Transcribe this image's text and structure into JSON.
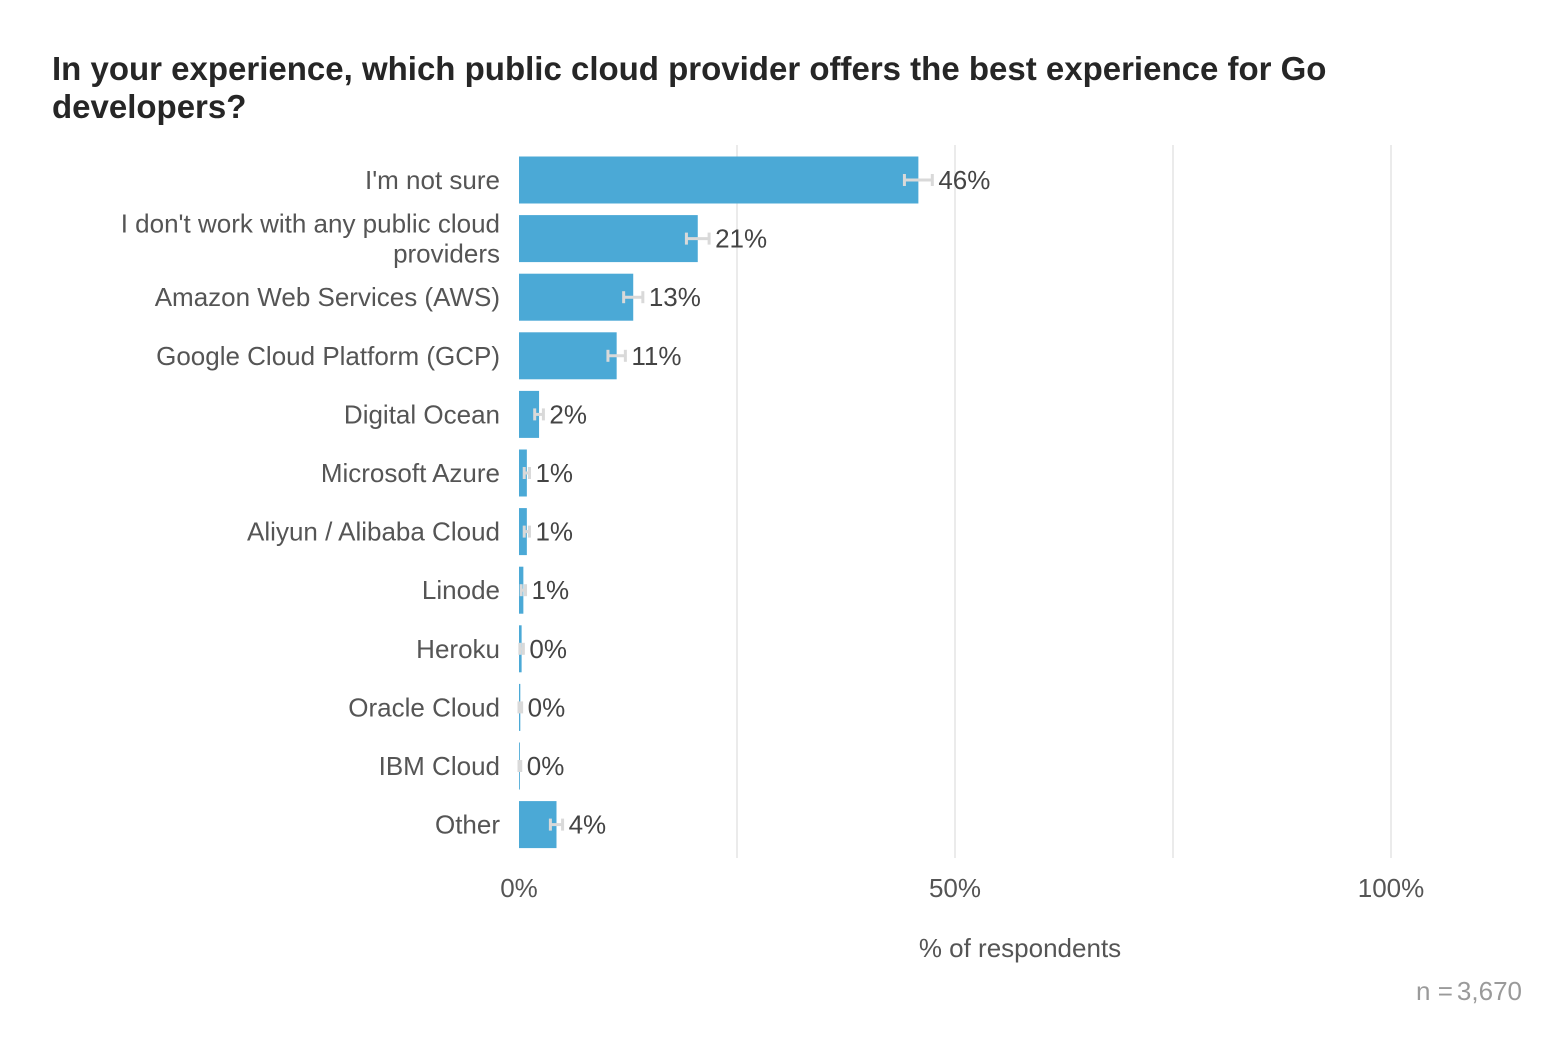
{
  "title": "In your experience, which public cloud provider offers the best experience for Go developers?",
  "chart_data": {
    "type": "bar",
    "orientation": "horizontal",
    "xlabel": "% of respondents",
    "xlim": [
      0,
      100
    ],
    "xticks": [
      0,
      50,
      100
    ],
    "xtick_labels": [
      "0%",
      "50%",
      "100%"
    ],
    "grid": true,
    "bar_color": "#4BA9D6",
    "error_bar_color": "#d9d9d9",
    "categories": [
      "I'm not sure",
      "I don't work with any public cloud providers",
      "Amazon Web Services (AWS)",
      "Google Cloud Platform (GCP)",
      "Digital Ocean",
      "Microsoft Azure",
      "Aliyun / Alibaba Cloud",
      "Linode",
      "Heroku",
      "Oracle Cloud",
      "IBM Cloud",
      "Other"
    ],
    "values": [
      45.8,
      20.5,
      13.1,
      11.2,
      2.3,
      0.9,
      0.9,
      0.5,
      0.3,
      0.15,
      0.1,
      4.3
    ],
    "value_labels": [
      "46%",
      "21%",
      "13%",
      "11%",
      "2%",
      "1%",
      "1%",
      "1%",
      "0%",
      "0%",
      "0%",
      "4%"
    ],
    "error_margin": [
      1.6,
      1.3,
      1.1,
      1.0,
      0.5,
      0.3,
      0.3,
      0.25,
      0.2,
      0.15,
      0.1,
      0.7
    ]
  },
  "note": {
    "label": "n =",
    "value": "3,670"
  }
}
